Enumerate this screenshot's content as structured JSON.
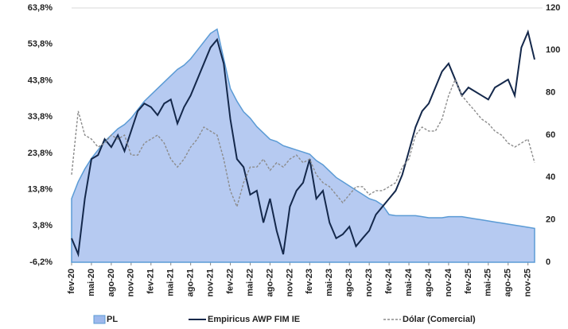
{
  "chart_data": {
    "type": "line",
    "categories": [
      "fev-20",
      null,
      null,
      "mai-20",
      null,
      null,
      "ago-20",
      null,
      null,
      "nov-20",
      null,
      null,
      "fev-21",
      null,
      null,
      "mai-21",
      null,
      null,
      "ago-21",
      null,
      null,
      "nov-21",
      null,
      null,
      "fev-22",
      null,
      null,
      "mai-22",
      null,
      null,
      "ago-22",
      null,
      null,
      "nov-22",
      null,
      null,
      "fev-23",
      null,
      null,
      "mai-23",
      null,
      null,
      "ago-23",
      null,
      null,
      "nov-23",
      null,
      null,
      "fev-24",
      null,
      null,
      "mai-24",
      null,
      null,
      "ago-24",
      null,
      null,
      "nov-24",
      null,
      null,
      "fev-25",
      null,
      null,
      "mai-25",
      null,
      null,
      "ago-25",
      null,
      null,
      "nov-25",
      null
    ],
    "series": [
      {
        "name": "PL",
        "kind": "area",
        "axis": "y2",
        "color": "#9db8ec",
        "values": [
          30,
          38,
          44,
          49,
          53,
          57,
          60,
          63,
          65,
          68,
          72,
          76,
          79,
          82,
          85,
          88,
          91,
          93,
          96,
          100,
          104,
          108,
          110,
          96,
          82,
          76,
          71,
          68,
          64,
          61,
          58,
          57,
          55,
          54,
          53,
          52,
          51,
          48,
          46,
          43,
          40,
          38,
          36,
          34,
          32,
          30,
          29,
          27,
          22.5,
          22,
          22,
          22,
          22,
          21.5,
          21,
          21,
          21,
          21.5,
          21.5,
          21.5,
          21,
          20.5,
          20,
          19.5,
          19,
          18.5,
          18,
          17.5,
          17,
          16.5,
          16
        ]
      },
      {
        "name": "Empiricus AWP FIM IE",
        "kind": "line",
        "color": "#14284b",
        "values": [
          0.4,
          -4,
          11.3,
          22.2,
          23.3,
          27.7,
          25.5,
          28.8,
          24.4,
          29.9,
          35.4,
          37.5,
          36.5,
          34.3,
          37.5,
          38.6,
          32,
          36.5,
          39.7,
          44.1,
          48.5,
          52.9,
          55.1,
          48.5,
          33.2,
          22.2,
          20,
          12.4,
          13.5,
          4.7,
          11.3,
          2.5,
          -4,
          9.1,
          13.5,
          15.7,
          22.2,
          11.3,
          13.5,
          4.7,
          0.4,
          1.5,
          3.6,
          -1.8,
          0.4,
          2.5,
          6.9,
          9.1,
          11.3,
          13.5,
          17.9,
          24.4,
          31,
          35.4,
          37.5,
          41.9,
          46.3,
          48.5,
          44.1,
          39.7,
          41.9,
          40.8,
          39.7,
          38.6,
          41.9,
          43,
          44.1,
          39.7,
          52.9,
          57.2,
          49.6
        ]
      },
      {
        "name": "Dólar (Comercial)",
        "kind": "dashed",
        "color": "#8c8c8c",
        "values": [
          17.9,
          35.4,
          28.8,
          27.7,
          25.5,
          26.6,
          28.8,
          27.7,
          28.8,
          23.3,
          23.3,
          26.6,
          27.7,
          28.8,
          26.6,
          22.2,
          20,
          22.2,
          25.5,
          27.7,
          31,
          29.9,
          28.8,
          22.2,
          13.5,
          9.1,
          15.7,
          20,
          20,
          22.2,
          19.1,
          21.2,
          20,
          22.2,
          23.3,
          21.2,
          22.2,
          17.9,
          15.7,
          14.6,
          12.4,
          10.2,
          12.4,
          14.6,
          14.6,
          12.4,
          13.5,
          13.5,
          14.6,
          15.7,
          20,
          22.2,
          28.8,
          31,
          29.9,
          29.9,
          33.2,
          39.7,
          44.1,
          39.7,
          37.5,
          35.4,
          33.2,
          32,
          29.9,
          28.8,
          26.6,
          25.5,
          26.6,
          27.7,
          21.2
        ]
      }
    ],
    "ylim": [
      -6.2,
      63.8
    ],
    "yticks": [
      {
        "value": -6.2,
        "label": "-6,2%"
      },
      {
        "value": 3.8,
        "label": "3,8%"
      },
      {
        "value": 13.8,
        "label": "13,8%"
      },
      {
        "value": 23.8,
        "label": "23,8%"
      },
      {
        "value": 33.8,
        "label": "33,8%"
      },
      {
        "value": 43.8,
        "label": "43,8%"
      },
      {
        "value": 53.8,
        "label": "53,8%"
      },
      {
        "value": 63.8,
        "label": "63,8%"
      }
    ],
    "y2lim": [
      0,
      120
    ],
    "y2ticks": [
      0,
      20,
      40,
      60,
      80,
      100,
      120
    ],
    "legend": "bottom"
  }
}
